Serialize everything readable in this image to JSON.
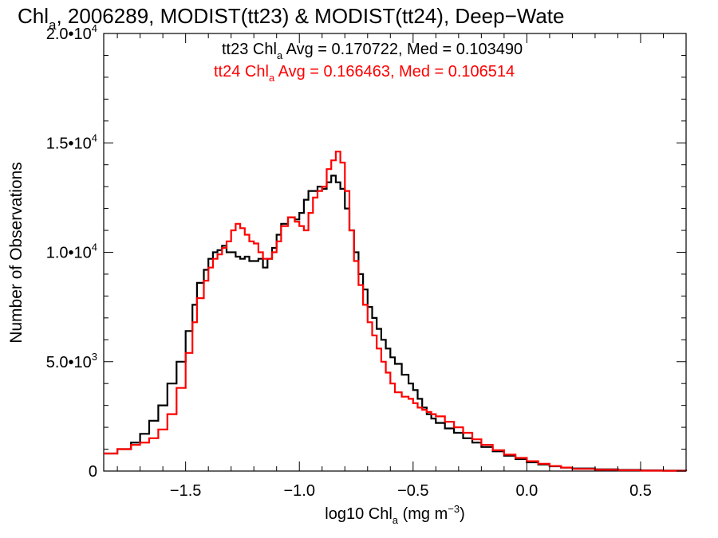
{
  "chart_data": {
    "type": "line",
    "title": {
      "prefix": "Chl",
      "sub": "a",
      "rest": ", 2006289, MODIST(tt23) & MODIST(tt24), Deep−Wate"
    },
    "xlabel": {
      "prefix": "log10 Chl",
      "sub": "a",
      "units": " (mg m",
      "exp": "−3",
      "close": ")"
    },
    "ylabel": "Number of Observations",
    "xlim": [
      -1.86,
      0.7
    ],
    "ylim": [
      0,
      20000
    ],
    "grid": false,
    "x_ticks": [
      {
        "value": -1.5,
        "label": "−1.5"
      },
      {
        "value": -1.0,
        "label": "−1.0"
      },
      {
        "value": -0.5,
        "label": "−0.5"
      },
      {
        "value": 0.0,
        "label": "0.0"
      },
      {
        "value": 0.5,
        "label": "0.5"
      }
    ],
    "y_ticks": [
      {
        "value": 0,
        "mantissa": "0",
        "exp": ""
      },
      {
        "value": 5000,
        "mantissa": "5.0•10",
        "exp": "3"
      },
      {
        "value": 10000,
        "mantissa": "1.0•10",
        "exp": "4"
      },
      {
        "value": 15000,
        "mantissa": "1.5•10",
        "exp": "4"
      },
      {
        "value": 20000,
        "mantissa": "2.0•10",
        "exp": "4"
      }
    ],
    "series": [
      {
        "name": "tt23",
        "color": "#000000",
        "stats": {
          "pre": "tt23 Chl",
          "sub": "a",
          "post": " Avg = 0.170722, Med = 0.103490"
        },
        "x": [
          -1.86,
          -1.8,
          -1.74,
          -1.7,
          -1.66,
          -1.62,
          -1.58,
          -1.54,
          -1.5,
          -1.47,
          -1.45,
          -1.42,
          -1.4,
          -1.38,
          -1.36,
          -1.34,
          -1.32,
          -1.3,
          -1.28,
          -1.26,
          -1.24,
          -1.22,
          -1.2,
          -1.18,
          -1.16,
          -1.14,
          -1.12,
          -1.1,
          -1.08,
          -1.05,
          -1.02,
          -1.0,
          -0.98,
          -0.96,
          -0.94,
          -0.92,
          -0.9,
          -0.88,
          -0.86,
          -0.84,
          -0.82,
          -0.8,
          -0.78,
          -0.76,
          -0.74,
          -0.72,
          -0.7,
          -0.68,
          -0.66,
          -0.64,
          -0.62,
          -0.6,
          -0.58,
          -0.55,
          -0.52,
          -0.5,
          -0.48,
          -0.46,
          -0.44,
          -0.42,
          -0.4,
          -0.36,
          -0.32,
          -0.28,
          -0.24,
          -0.2,
          -0.15,
          -0.1,
          -0.05,
          0.0,
          0.05,
          0.1,
          0.15,
          0.2,
          0.3,
          0.4,
          0.5,
          0.6,
          0.7
        ],
        "values": [
          800,
          1000,
          1300,
          1700,
          2300,
          3000,
          4000,
          5000,
          6400,
          7600,
          8600,
          9200,
          9700,
          10000,
          10100,
          10300,
          10000,
          10000,
          9800,
          9700,
          9800,
          9600,
          9600,
          9700,
          9300,
          9700,
          10200,
          10800,
          11300,
          11600,
          11500,
          11800,
          12400,
          12800,
          12800,
          13000,
          12900,
          13200,
          13500,
          13200,
          12900,
          12000,
          11000,
          10000,
          9000,
          8300,
          7500,
          7000,
          6500,
          6000,
          5600,
          5200,
          4900,
          4400,
          4000,
          3700,
          3300,
          2900,
          2600,
          2400,
          2200,
          1950,
          1750,
          1500,
          1300,
          1100,
          900,
          700,
          550,
          400,
          300,
          220,
          160,
          120,
          80,
          50,
          30,
          20,
          10
        ]
      },
      {
        "name": "tt24",
        "color": "#ff0000",
        "stats": {
          "pre": "tt24 Chl",
          "sub": "a",
          "post": " Avg = 0.166463, Med = 0.106514"
        },
        "x": [
          -1.86,
          -1.8,
          -1.74,
          -1.7,
          -1.66,
          -1.62,
          -1.58,
          -1.54,
          -1.5,
          -1.47,
          -1.45,
          -1.42,
          -1.4,
          -1.38,
          -1.36,
          -1.34,
          -1.32,
          -1.3,
          -1.28,
          -1.26,
          -1.24,
          -1.22,
          -1.2,
          -1.18,
          -1.16,
          -1.14,
          -1.12,
          -1.1,
          -1.08,
          -1.05,
          -1.02,
          -1.0,
          -0.98,
          -0.96,
          -0.94,
          -0.92,
          -0.9,
          -0.88,
          -0.86,
          -0.84,
          -0.82,
          -0.8,
          -0.78,
          -0.76,
          -0.74,
          -0.72,
          -0.7,
          -0.68,
          -0.66,
          -0.64,
          -0.62,
          -0.6,
          -0.58,
          -0.55,
          -0.52,
          -0.5,
          -0.48,
          -0.46,
          -0.44,
          -0.42,
          -0.4,
          -0.36,
          -0.32,
          -0.28,
          -0.24,
          -0.2,
          -0.15,
          -0.1,
          -0.05,
          0.0,
          0.05,
          0.1,
          0.15,
          0.2,
          0.3,
          0.4,
          0.5,
          0.6,
          0.7
        ],
        "values": [
          800,
          1000,
          1200,
          1300,
          1500,
          1900,
          2600,
          3800,
          5400,
          6800,
          7900,
          8700,
          9300,
          9700,
          9900,
          10200,
          10500,
          11000,
          11300,
          11100,
          10800,
          10500,
          10400,
          10000,
          9700,
          9700,
          10000,
          10500,
          11200,
          11600,
          11400,
          11200,
          11000,
          11800,
          12500,
          12800,
          13000,
          13800,
          14200,
          14600,
          14100,
          12800,
          11000,
          9600,
          8500,
          7600,
          6800,
          6200,
          5600,
          5000,
          4500,
          4000,
          3600,
          3400,
          3300,
          3100,
          2900,
          2800,
          2700,
          2600,
          2500,
          2250,
          2000,
          1750,
          1450,
          1200,
          950,
          750,
          600,
          450,
          330,
          230,
          160,
          100,
          60,
          35,
          20,
          10,
          5
        ]
      }
    ]
  }
}
